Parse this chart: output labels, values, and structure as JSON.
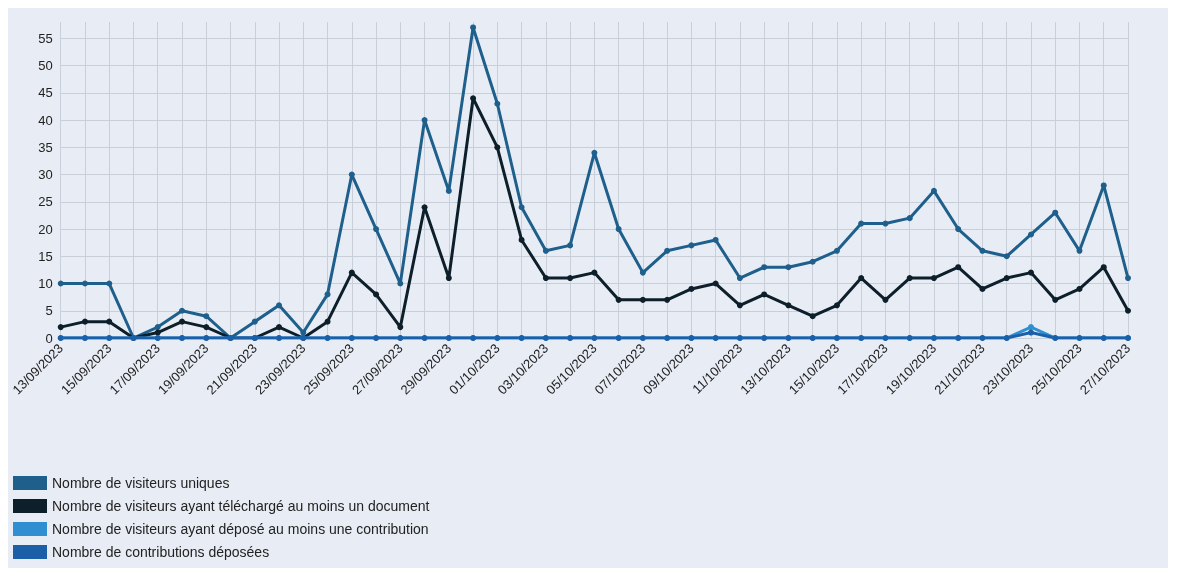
{
  "chart_data": {
    "type": "line",
    "categories": [
      "13/09/2023",
      null,
      "15/09/2023",
      null,
      "17/09/2023",
      null,
      "19/09/2023",
      null,
      "21/09/2023",
      null,
      "23/09/2023",
      null,
      "25/09/2023",
      null,
      "27/09/2023",
      null,
      "29/09/2023",
      null,
      "01/10/2023",
      null,
      "03/10/2023",
      null,
      "05/10/2023",
      null,
      "07/10/2023",
      null,
      "09/10/2023",
      null,
      "11/10/2023",
      null,
      "13/10/2023",
      null,
      "15/10/2023",
      null,
      "17/10/2023",
      null,
      "19/10/2023",
      null,
      "21/10/2023",
      null,
      "23/10/2023",
      null,
      "25/10/2023",
      null,
      "27/10/2023"
    ],
    "series": [
      {
        "name": "Nombre de visiteurs uniques",
        "color": "#1e5f8c",
        "values": [
          10,
          10,
          10,
          0,
          2,
          5,
          4,
          0,
          3,
          6,
          1,
          8,
          30,
          20,
          10,
          40,
          27,
          57,
          43,
          24,
          16,
          17,
          34,
          20,
          12,
          16,
          17,
          18,
          11,
          13,
          13,
          14,
          16,
          21,
          21,
          22,
          27,
          20,
          16,
          15,
          19,
          23,
          16,
          28,
          11
        ]
      },
      {
        "name": "Nombre de visiteurs ayant téléchargé au moins un document",
        "color": "#0d1f2a",
        "values": [
          2,
          3,
          3,
          0,
          1,
          3,
          2,
          0,
          0,
          2,
          0,
          3,
          12,
          8,
          2,
          24,
          11,
          44,
          35,
          18,
          11,
          11,
          12,
          7,
          7,
          7,
          9,
          10,
          6,
          8,
          6,
          4,
          6,
          11,
          7,
          11,
          11,
          13,
          9,
          11,
          12,
          7,
          9,
          13,
          5
        ]
      },
      {
        "name": "Nombre de visiteurs ayant déposé au moins une contribution",
        "color": "#2f8fd0",
        "values": [
          0,
          0,
          0,
          0,
          0,
          0,
          0,
          0,
          0,
          0,
          0,
          0,
          0,
          0,
          0,
          0,
          0,
          0,
          0,
          0,
          0,
          0,
          0,
          0,
          0,
          0,
          0,
          0,
          0,
          0,
          0,
          0,
          0,
          0,
          0,
          0,
          0,
          0,
          0,
          0,
          2,
          0,
          0,
          0,
          0
        ]
      },
      {
        "name": "Nombre de contributions déposées",
        "color": "#1a5fa8",
        "values": [
          0,
          0,
          0,
          0,
          0,
          0,
          0,
          0,
          0,
          0,
          0,
          0,
          0,
          0,
          0,
          0,
          0,
          0,
          0,
          0,
          0,
          0,
          0,
          0,
          0,
          0,
          0,
          0,
          0,
          0,
          0,
          0,
          0,
          0,
          0,
          0,
          0,
          0,
          0,
          0,
          1,
          0,
          0,
          0,
          0
        ]
      }
    ],
    "ylim": [
      0,
      58
    ],
    "yticks": [
      0,
      5,
      10,
      15,
      20,
      25,
      30,
      35,
      40,
      45,
      50,
      55
    ],
    "grid": true,
    "legend": "bottom left",
    "marker": "circle",
    "line_style": "solid"
  }
}
